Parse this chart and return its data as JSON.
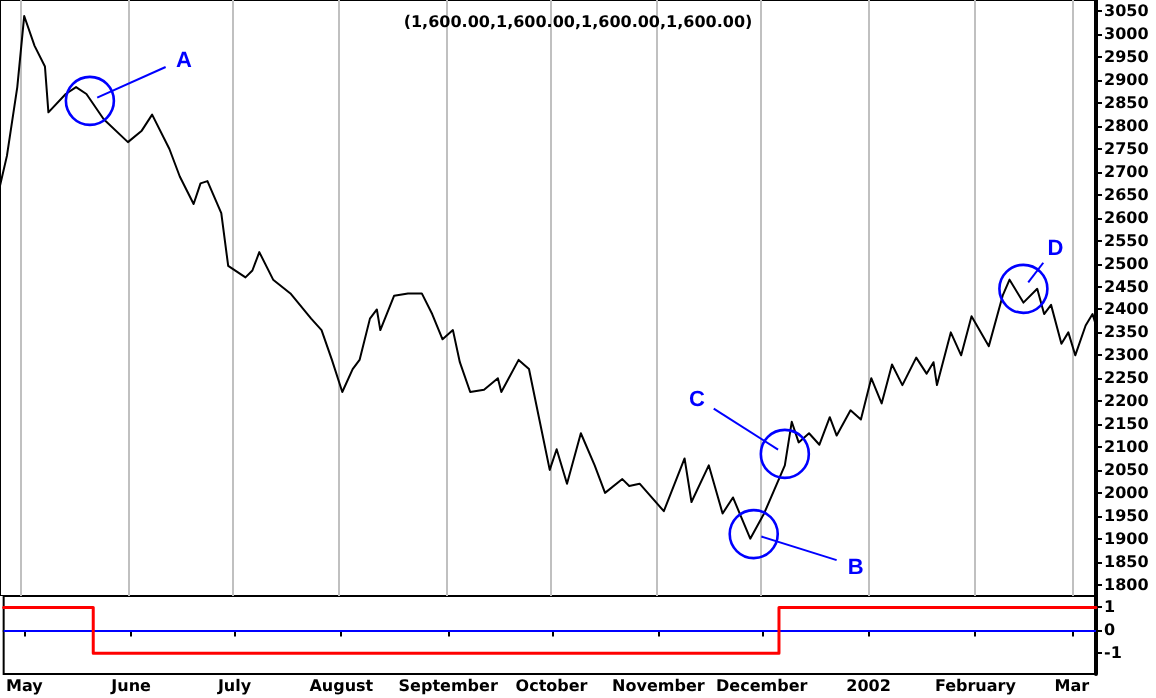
{
  "chart_data": [
    {
      "type": "line",
      "title": "(1,600.00,1,600.00,1,600.00,1,600.00)",
      "series": [
        {
          "color": "#000000",
          "x": [
            "2001-04-25",
            "2001-04-27",
            "2001-04-30",
            "2001-05-02",
            "2001-05-05",
            "2001-05-08",
            "2001-05-09",
            "2001-05-14",
            "2001-05-17",
            "2001-05-20",
            "2001-05-25",
            "2001-06-01",
            "2001-06-05",
            "2001-06-08",
            "2001-06-13",
            "2001-06-16",
            "2001-06-20",
            "2001-06-22",
            "2001-06-24",
            "2001-06-28",
            "2001-06-30",
            "2001-07-05",
            "2001-07-07",
            "2001-07-09",
            "2001-07-13",
            "2001-07-18",
            "2001-07-24",
            "2001-07-27",
            "2001-07-30",
            "2001-08-02",
            "2001-08-05",
            "2001-08-07",
            "2001-08-10",
            "2001-08-12",
            "2001-08-13",
            "2001-08-17",
            "2001-08-21",
            "2001-08-25",
            "2001-08-28",
            "2001-08-31",
            "2001-09-03",
            "2001-09-05",
            "2001-09-08",
            "2001-09-12",
            "2001-09-16",
            "2001-09-17",
            "2001-09-22",
            "2001-09-25",
            "2001-09-28",
            "2001-10-01",
            "2001-10-03",
            "2001-10-06",
            "2001-10-10",
            "2001-10-14",
            "2001-10-17",
            "2001-10-22",
            "2001-10-24",
            "2001-10-27",
            "2001-11-03",
            "2001-11-09",
            "2001-11-11",
            "2001-11-16",
            "2001-11-20",
            "2001-11-23",
            "2001-11-28",
            "2001-12-02",
            "2001-12-08",
            "2001-12-10",
            "2001-12-12",
            "2001-12-15",
            "2001-12-18",
            "2001-12-21",
            "2001-12-23",
            "2001-12-27",
            "2001-12-30",
            "2002-01-02",
            "2002-01-05",
            "2002-01-08",
            "2002-01-11",
            "2002-01-15",
            "2002-01-18",
            "2002-01-20",
            "2002-01-21",
            "2002-01-25",
            "2002-01-28",
            "2002-01-31",
            "2002-02-05",
            "2002-02-09",
            "2002-02-11",
            "2002-02-15",
            "2002-02-19",
            "2002-02-21",
            "2002-02-23",
            "2002-02-26",
            "2002-02-28",
            "2002-03-02",
            "2002-03-05",
            "2002-03-07",
            "2002-03-08"
          ],
          "values": [
            2670,
            2735,
            2885,
            3040,
            2975,
            2930,
            2830,
            2870,
            2885,
            2870,
            2815,
            2765,
            2790,
            2825,
            2750,
            2690,
            2630,
            2675,
            2680,
            2610,
            2495,
            2470,
            2485,
            2525,
            2465,
            2435,
            2380,
            2355,
            2290,
            2220,
            2270,
            2290,
            2380,
            2400,
            2355,
            2430,
            2435,
            2435,
            2390,
            2335,
            2355,
            2285,
            2220,
            2225,
            2250,
            2220,
            2290,
            2270,
            2160,
            2050,
            2095,
            2020,
            2130,
            2060,
            2000,
            2030,
            2015,
            2020,
            1960,
            2075,
            1980,
            2060,
            1955,
            1990,
            1900,
            1955,
            2060,
            2155,
            2110,
            2130,
            2105,
            2165,
            2125,
            2180,
            2160,
            2250,
            2195,
            2280,
            2235,
            2295,
            2260,
            2285,
            2235,
            2350,
            2300,
            2385,
            2320,
            2430,
            2465,
            2415,
            2445,
            2390,
            2410,
            2325,
            2350,
            2300,
            2365,
            2390,
            2365
          ]
        }
      ],
      "xlim": [
        "2001-04-25",
        "2002-03-08"
      ],
      "xticks": [
        {
          "value": "2001-05-01",
          "label": null
        },
        {
          "value": "2001-06-01",
          "label": null
        },
        {
          "value": "2001-07-01",
          "label": null
        },
        {
          "value": "2001-08-01",
          "label": null
        },
        {
          "value": "2001-09-01",
          "label": null
        },
        {
          "value": "2001-10-01",
          "label": null
        },
        {
          "value": "2001-11-01",
          "label": null
        },
        {
          "value": "2001-12-01",
          "label": null
        },
        {
          "value": "2002-01-01",
          "label": null
        },
        {
          "value": "2002-02-01",
          "label": null
        },
        {
          "value": "2002-03-01",
          "label": null
        }
      ],
      "ylim": [
        1775,
        3075
      ],
      "yticks": [
        1800,
        1850,
        1900,
        1950,
        2000,
        2050,
        2100,
        2150,
        2200,
        2250,
        2300,
        2350,
        2400,
        2450,
        2500,
        2550,
        2600,
        2650,
        2700,
        2750,
        2800,
        2850,
        2900,
        2950,
        3000,
        3050
      ],
      "tick_labels": "y",
      "grid": "x",
      "annotations": [
        {
          "text": "A",
          "x": "2001-05-21",
          "y": 2855
        },
        {
          "text": "B",
          "x": "2001-11-29",
          "y": 1910
        },
        {
          "text": "C",
          "x": "2001-12-08",
          "y": 2085
        },
        {
          "text": "D",
          "x": "2002-02-15",
          "y": 2445
        }
      ]
    },
    {
      "type": "step",
      "series": [
        {
          "color": "#ff0000",
          "x": [
            "2001-04-25",
            "2001-05-21",
            "2001-12-06",
            "2002-03-08"
          ],
          "values": [
            1,
            -1,
            1,
            1
          ]
        }
      ],
      "xlim": [
        "2001-04-25",
        "2002-03-08"
      ],
      "xticks": [
        {
          "value": "2001-05-01",
          "label": "May"
        },
        {
          "value": "2001-06-01",
          "label": "June"
        },
        {
          "value": "2001-07-01",
          "label": "July"
        },
        {
          "value": "2001-08-01",
          "label": "August"
        },
        {
          "value": "2001-09-01",
          "label": "September"
        },
        {
          "value": "2001-10-01",
          "label": "October"
        },
        {
          "value": "2001-11-01",
          "label": "November"
        },
        {
          "value": "2001-12-01",
          "label": "December"
        },
        {
          "value": "2002-01-01",
          "label": "2002"
        },
        {
          "value": "2002-02-01",
          "label": "February"
        },
        {
          "value": "2002-03-01",
          "label": "Mar"
        }
      ],
      "ylim": [
        -1.9,
        1.5
      ],
      "yticks": [
        -1,
        0,
        1
      ],
      "ref_lines": [
        {
          "axis": "y",
          "value": 0,
          "color": "#0000ff"
        }
      ]
    }
  ]
}
